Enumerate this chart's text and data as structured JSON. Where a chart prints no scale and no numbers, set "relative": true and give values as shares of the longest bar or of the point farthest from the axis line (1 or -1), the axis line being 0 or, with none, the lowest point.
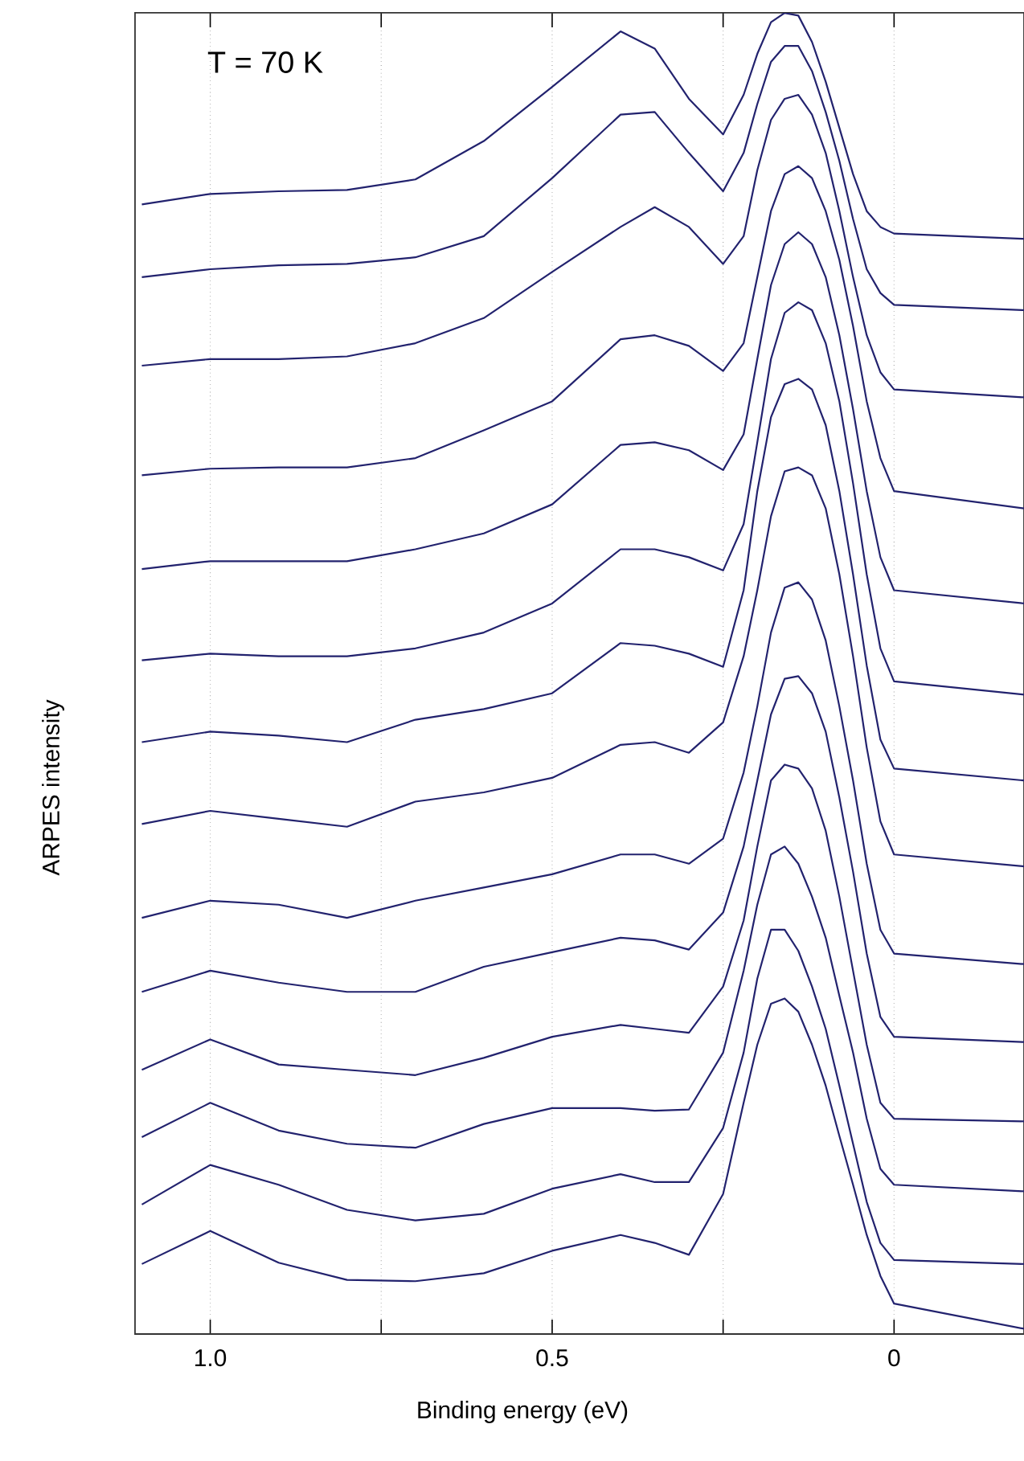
{
  "chart_data": {
    "type": "line",
    "relative": true,
    "xlabel": "Binding energy  (eV)",
    "ylabel": "ARPES intensity",
    "annotations": [
      "T = 70 K"
    ],
    "xlim": [
      1.11,
      -0.19
    ],
    "xticks": [
      {
        "value": 1.0,
        "label": "1.0"
      },
      {
        "value": 0.75,
        "label": null
      },
      0.5,
      {
        "value": 0.25,
        "label": null
      },
      0
    ],
    "grid": "x",
    "x": [
      1.1,
      1.0,
      0.9,
      0.8,
      0.7,
      0.6,
      0.5,
      0.4,
      0.35,
      0.3,
      0.25,
      0.22,
      0.2,
      0.18,
      0.16,
      0.14,
      0.12,
      0.1,
      0.08,
      0.06,
      0.04,
      0.02,
      0,
      -0.19
    ],
    "series": [
      {
        "color": "#22226e",
        "values": [
          0.855,
          0.863,
          0.865,
          0.866,
          0.874,
          0.903,
          0.944,
          0.986,
          0.973,
          0.935,
          0.908,
          0.938,
          0.969,
          0.993,
          1.0,
          0.998,
          0.978,
          0.948,
          0.913,
          0.878,
          0.85,
          0.838,
          0.833,
          0.829
        ]
      },
      {
        "color": "#22226e",
        "values": [
          0.8,
          0.806,
          0.809,
          0.81,
          0.815,
          0.831,
          0.875,
          0.923,
          0.925,
          0.894,
          0.865,
          0.894,
          0.931,
          0.963,
          0.975,
          0.975,
          0.956,
          0.925,
          0.888,
          0.844,
          0.806,
          0.788,
          0.779,
          0.775
        ]
      },
      {
        "color": "#22226e",
        "values": [
          0.733,
          0.738,
          0.738,
          0.74,
          0.75,
          0.769,
          0.804,
          0.838,
          0.853,
          0.838,
          0.81,
          0.831,
          0.881,
          0.919,
          0.935,
          0.938,
          0.923,
          0.894,
          0.85,
          0.8,
          0.756,
          0.728,
          0.715,
          0.709
        ]
      },
      {
        "color": "#22226e",
        "values": [
          0.65,
          0.655,
          0.656,
          0.656,
          0.663,
          0.684,
          0.706,
          0.753,
          0.756,
          0.748,
          0.729,
          0.75,
          0.8,
          0.85,
          0.878,
          0.884,
          0.875,
          0.85,
          0.813,
          0.763,
          0.706,
          0.663,
          0.638,
          0.625
        ]
      },
      {
        "color": "#22226e",
        "values": [
          0.579,
          0.585,
          0.585,
          0.585,
          0.594,
          0.606,
          0.628,
          0.673,
          0.675,
          0.669,
          0.654,
          0.681,
          0.738,
          0.794,
          0.825,
          0.834,
          0.825,
          0.8,
          0.756,
          0.7,
          0.638,
          0.588,
          0.563,
          0.553
        ]
      },
      {
        "color": "#22226e",
        "values": [
          0.51,
          0.515,
          0.513,
          0.513,
          0.519,
          0.531,
          0.553,
          0.594,
          0.594,
          0.588,
          0.578,
          0.613,
          0.675,
          0.738,
          0.773,
          0.781,
          0.775,
          0.75,
          0.706,
          0.644,
          0.575,
          0.519,
          0.494,
          0.484
        ]
      },
      {
        "color": "#22226e",
        "values": [
          0.448,
          0.456,
          0.453,
          0.448,
          0.465,
          0.473,
          0.485,
          0.523,
          0.521,
          0.515,
          0.505,
          0.563,
          0.638,
          0.694,
          0.719,
          0.723,
          0.715,
          0.688,
          0.638,
          0.575,
          0.506,
          0.45,
          0.428,
          0.419
        ]
      },
      {
        "color": "#22226e",
        "values": [
          0.386,
          0.396,
          0.39,
          0.384,
          0.403,
          0.41,
          0.421,
          0.446,
          0.448,
          0.44,
          0.463,
          0.513,
          0.563,
          0.619,
          0.653,
          0.656,
          0.65,
          0.625,
          0.575,
          0.513,
          0.444,
          0.388,
          0.363,
          0.354
        ]
      },
      {
        "color": "#22226e",
        "values": [
          0.315,
          0.328,
          0.325,
          0.315,
          0.328,
          0.338,
          0.348,
          0.363,
          0.363,
          0.356,
          0.375,
          0.425,
          0.475,
          0.531,
          0.565,
          0.569,
          0.556,
          0.525,
          0.475,
          0.419,
          0.356,
          0.306,
          0.288,
          0.28
        ]
      },
      {
        "color": "#22226e",
        "values": [
          0.259,
          0.275,
          0.266,
          0.259,
          0.259,
          0.278,
          0.289,
          0.3,
          0.298,
          0.291,
          0.319,
          0.369,
          0.419,
          0.469,
          0.496,
          0.498,
          0.485,
          0.456,
          0.406,
          0.35,
          0.288,
          0.24,
          0.225,
          0.221
        ]
      },
      {
        "color": "#22226e",
        "values": [
          0.2,
          0.223,
          0.204,
          0.2,
          0.196,
          0.209,
          0.225,
          0.234,
          0.231,
          0.228,
          0.263,
          0.313,
          0.369,
          0.419,
          0.431,
          0.428,
          0.413,
          0.381,
          0.331,
          0.275,
          0.219,
          0.175,
          0.163,
          0.161
        ]
      },
      {
        "color": "#22226e",
        "values": [
          0.149,
          0.175,
          0.154,
          0.144,
          0.141,
          0.159,
          0.171,
          0.171,
          0.169,
          0.17,
          0.213,
          0.275,
          0.325,
          0.363,
          0.369,
          0.356,
          0.331,
          0.3,
          0.256,
          0.213,
          0.163,
          0.125,
          0.113,
          0.108
        ]
      },
      {
        "color": "#22226e",
        "values": [
          0.098,
          0.128,
          0.113,
          0.094,
          0.086,
          0.091,
          0.11,
          0.121,
          0.115,
          0.115,
          0.156,
          0.213,
          0.269,
          0.306,
          0.306,
          0.29,
          0.263,
          0.231,
          0.188,
          0.144,
          0.1,
          0.069,
          0.056,
          0.053
        ]
      },
      {
        "color": "#22226e",
        "values": [
          0.053,
          0.078,
          0.054,
          0.041,
          0.04,
          0.046,
          0.063,
          0.075,
          0.069,
          0.06,
          0.106,
          0.175,
          0.219,
          0.25,
          0.254,
          0.244,
          0.219,
          0.188,
          0.15,
          0.113,
          0.075,
          0.044,
          0.023,
          0.004
        ]
      }
    ]
  }
}
